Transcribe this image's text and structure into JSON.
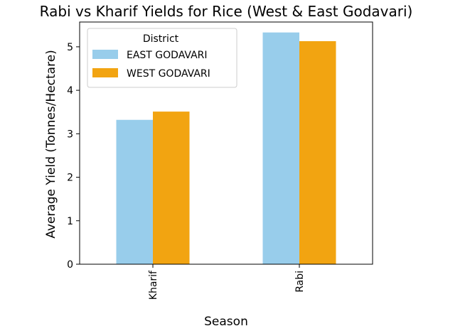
{
  "chart_data": {
    "type": "bar",
    "title": "Rabi vs Kharif Yields for Rice (West & East Godavari)",
    "xlabel": "Season",
    "ylabel": "Average Yield (Tonnes/Hectare)",
    "categories": [
      "Kharif",
      "Rabi"
    ],
    "series": [
      {
        "name": "EAST GODAVARI",
        "values": [
          3.32,
          5.33
        ],
        "color": "#98cdeb"
      },
      {
        "name": "WEST GODAVARI",
        "values": [
          3.51,
          5.13
        ],
        "color": "#f2a411"
      }
    ],
    "ylim": [
      0,
      5.57
    ],
    "yticks": [
      0,
      1,
      2,
      3,
      4,
      5
    ],
    "grid": false,
    "legend": {
      "title": "District",
      "position": "top-left"
    }
  }
}
